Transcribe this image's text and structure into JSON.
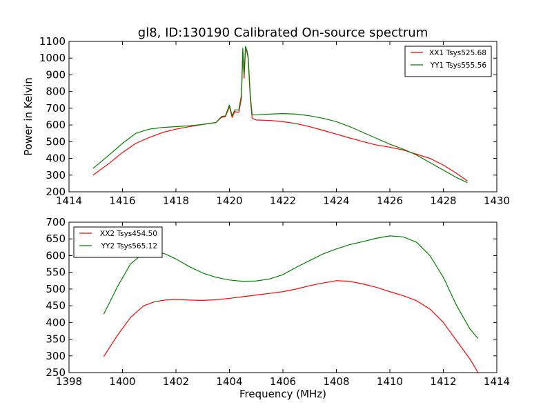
{
  "figure": {
    "title": "gl8, ID:130190 Calibrated On-source spectrum"
  },
  "chart_data": [
    {
      "type": "line",
      "title": "gl8, ID:130190 Calibrated On-source spectrum",
      "xlabel": "",
      "ylabel": "Power in Kelvin",
      "xlim": [
        1414,
        1430
      ],
      "ylim": [
        200,
        1100
      ],
      "xticks": [
        1414,
        1416,
        1418,
        1420,
        1422,
        1424,
        1426,
        1428,
        1430
      ],
      "yticks": [
        200,
        300,
        400,
        500,
        600,
        700,
        800,
        900,
        1000,
        1100
      ],
      "legend_position": "top-right",
      "grid": false,
      "series": [
        {
          "name": "XX1 Tsys525.68",
          "color": "#ff0000",
          "x": [
            1414.9,
            1415.5,
            1416.0,
            1416.5,
            1417.0,
            1417.5,
            1418.0,
            1418.5,
            1419.0,
            1419.5,
            1419.7,
            1419.85,
            1420.0,
            1420.1,
            1420.2,
            1420.35,
            1420.45,
            1420.5,
            1420.55,
            1420.6,
            1420.65,
            1420.7,
            1420.78,
            1420.85,
            1421.0,
            1421.5,
            1422.0,
            1422.5,
            1423.0,
            1423.5,
            1424.0,
            1424.5,
            1425.0,
            1425.5,
            1426.0,
            1426.5,
            1427.0,
            1427.5,
            1428.0,
            1428.5,
            1428.9
          ],
          "y": [
            300,
            370,
            435,
            490,
            525,
            555,
            575,
            590,
            603,
            615,
            645,
            650,
            710,
            645,
            680,
            675,
            760,
            1040,
            880,
            1050,
            1040,
            1000,
            760,
            640,
            630,
            627,
            620,
            608,
            590,
            568,
            545,
            522,
            500,
            480,
            467,
            450,
            425,
            400,
            360,
            310,
            265
          ]
        },
        {
          "name": "YY1 Tsys555.56",
          "color": "#008000",
          "x": [
            1414.9,
            1415.5,
            1416.0,
            1416.5,
            1417.0,
            1417.5,
            1418.0,
            1418.5,
            1419.0,
            1419.5,
            1419.7,
            1419.85,
            1420.0,
            1420.1,
            1420.2,
            1420.35,
            1420.45,
            1420.5,
            1420.55,
            1420.6,
            1420.65,
            1420.7,
            1420.78,
            1420.85,
            1421.0,
            1421.5,
            1422.0,
            1422.5,
            1423.0,
            1423.5,
            1424.0,
            1424.5,
            1425.0,
            1425.5,
            1426.0,
            1426.5,
            1427.0,
            1427.5,
            1428.0,
            1428.5,
            1428.9
          ],
          "y": [
            340,
            420,
            490,
            550,
            575,
            585,
            590,
            595,
            603,
            615,
            650,
            655,
            720,
            655,
            690,
            690,
            780,
            1060,
            900,
            1070,
            1050,
            1010,
            780,
            660,
            660,
            665,
            668,
            665,
            655,
            640,
            620,
            590,
            555,
            520,
            485,
            455,
            420,
            375,
            330,
            285,
            255
          ]
        }
      ]
    },
    {
      "type": "line",
      "title": "",
      "xlabel": "Frequency (MHz)",
      "ylabel": "",
      "xlim": [
        1398,
        1414
      ],
      "ylim": [
        250,
        700
      ],
      "xticks": [
        1398,
        1400,
        1402,
        1404,
        1406,
        1408,
        1410,
        1412,
        1414
      ],
      "yticks": [
        250,
        300,
        350,
        400,
        450,
        500,
        550,
        600,
        650,
        700
      ],
      "legend_position": "top-left",
      "grid": false,
      "series": [
        {
          "name": "XX2 Tsys454.50",
          "color": "#ff0000",
          "x": [
            1399.3,
            1399.8,
            1400.3,
            1400.8,
            1401.2,
            1401.6,
            1402.0,
            1402.5,
            1403.0,
            1403.5,
            1404.0,
            1404.5,
            1405.0,
            1405.5,
            1406.0,
            1406.5,
            1407.0,
            1407.5,
            1408.0,
            1408.5,
            1409.0,
            1409.5,
            1410.0,
            1410.5,
            1411.0,
            1411.5,
            1412.0,
            1412.5,
            1413.0,
            1413.3
          ],
          "y": [
            298,
            360,
            415,
            450,
            462,
            467,
            469,
            467,
            466,
            468,
            472,
            477,
            482,
            487,
            492,
            500,
            510,
            518,
            525,
            523,
            515,
            505,
            492,
            480,
            465,
            440,
            400,
            345,
            290,
            250
          ]
        },
        {
          "name": "YY2 Tsys565.12",
          "color": "#008000",
          "x": [
            1399.3,
            1399.8,
            1400.3,
            1400.8,
            1401.2,
            1401.6,
            1402.0,
            1402.5,
            1403.0,
            1403.5,
            1404.0,
            1404.5,
            1405.0,
            1405.5,
            1406.0,
            1406.5,
            1407.0,
            1407.5,
            1408.0,
            1408.5,
            1409.0,
            1409.5,
            1410.0,
            1410.5,
            1411.0,
            1411.5,
            1412.0,
            1412.5,
            1413.0,
            1413.3
          ],
          "y": [
            425,
            505,
            575,
            608,
            614,
            605,
            590,
            567,
            548,
            535,
            527,
            523,
            524,
            530,
            543,
            565,
            585,
            605,
            620,
            633,
            642,
            652,
            659,
            656,
            640,
            600,
            535,
            450,
            380,
            352
          ]
        }
      ]
    }
  ]
}
